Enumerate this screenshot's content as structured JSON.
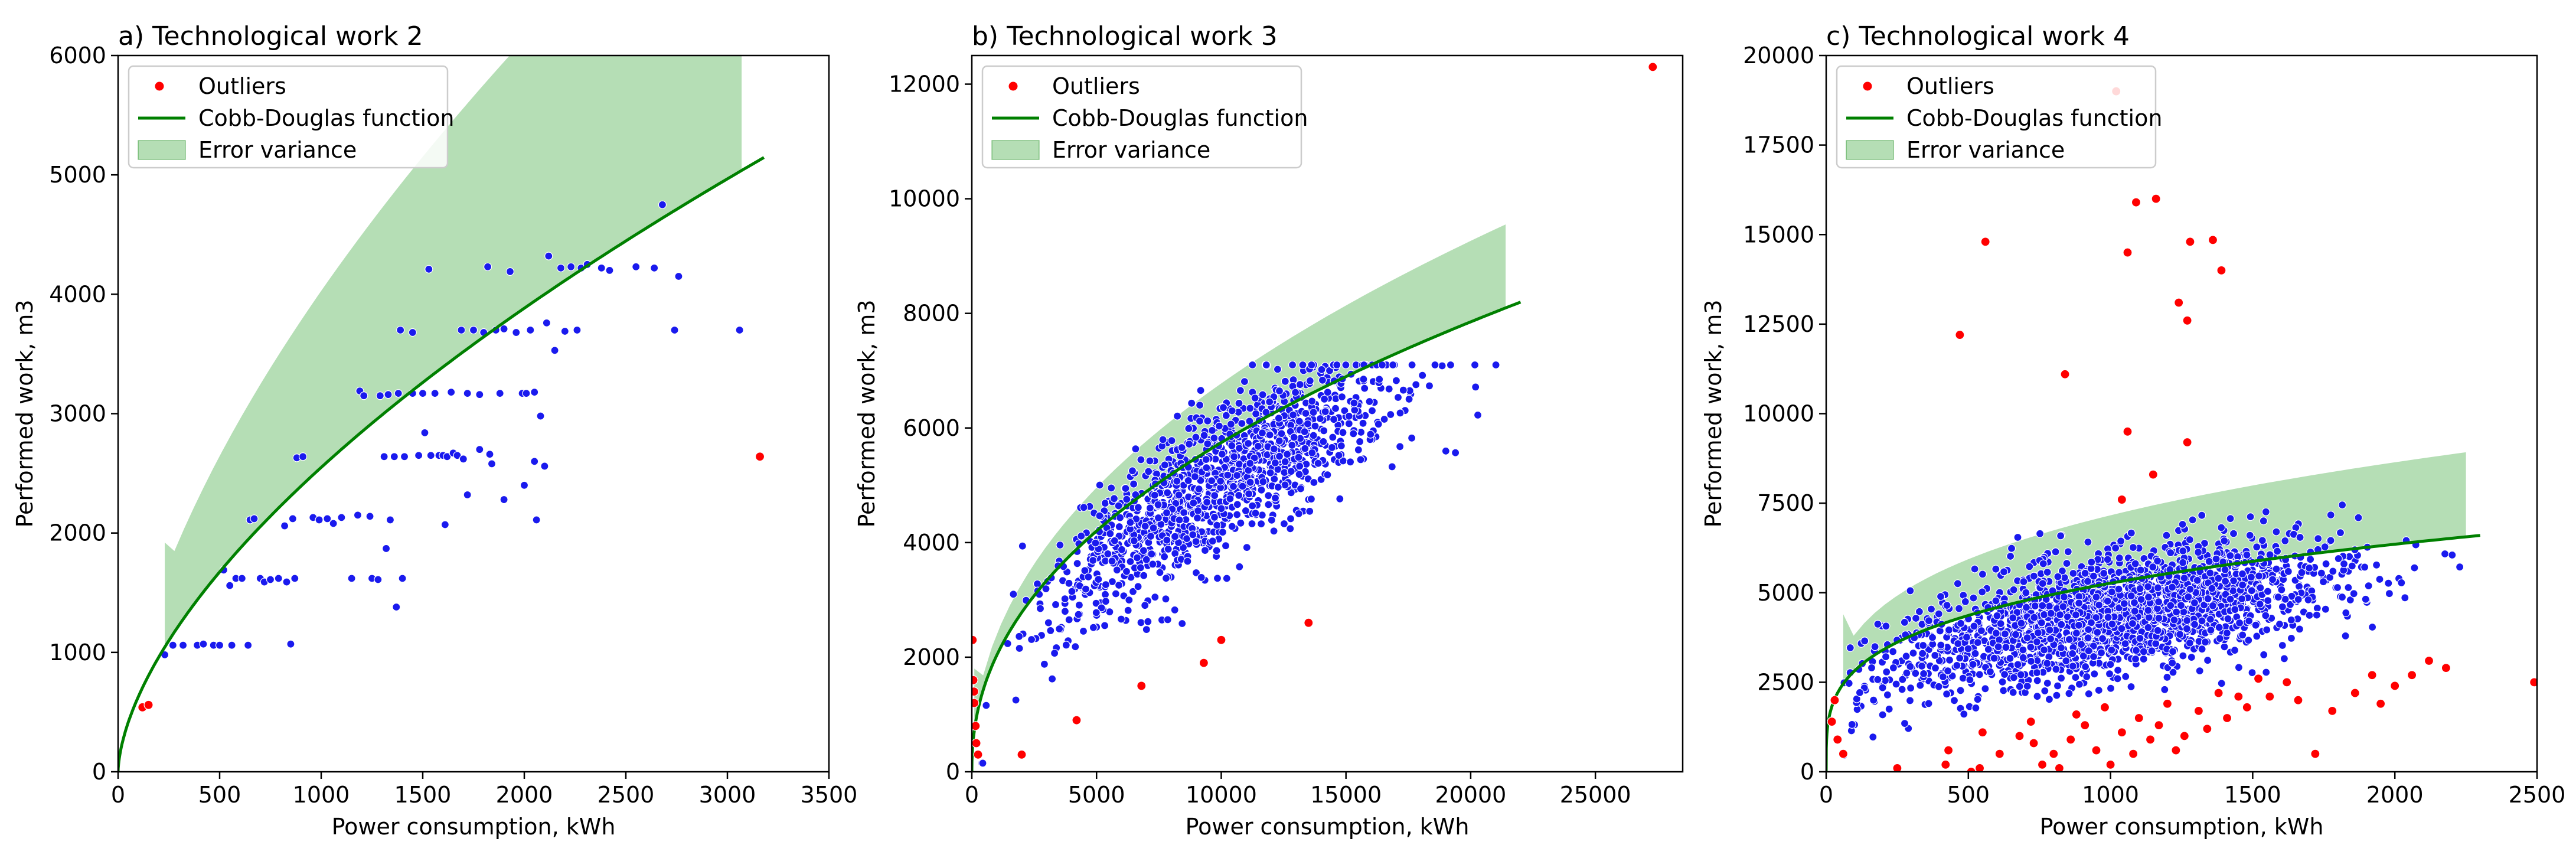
{
  "figure": {
    "colors": {
      "background": "#ffffff",
      "outliers": "#ff0000",
      "points": "#1a1aee",
      "point_edge": "#ffffff",
      "curve": "#008000",
      "band": "#a8d8a8",
      "band_opacity": 0.85,
      "legend_border": "#cccccc"
    },
    "legend_labels": {
      "outliers": "Outliers",
      "curve": "Cobb-Douglas function",
      "band": "Error variance"
    }
  },
  "chart_data": [
    {
      "type": "scatter",
      "title": "a) Technological work 2",
      "xlabel": "Power consumption, kWh",
      "ylabel": "Performed work, m3",
      "xlim": [
        0,
        3500
      ],
      "ylim": [
        0,
        6000
      ],
      "xticks": [
        "0",
        "500",
        "1000",
        "1500",
        "2000",
        "2500",
        "3000",
        "3500"
      ],
      "xtick_values": [
        0,
        500,
        1000,
        1500,
        2000,
        2500,
        3000,
        3500
      ],
      "yticks": [
        "0",
        "1000",
        "2000",
        "3000",
        "4000",
        "5000",
        "6000"
      ],
      "ytick_values": [
        0,
        1000,
        2000,
        3000,
        4000,
        5000,
        6000
      ],
      "grid": false,
      "legend": "upper left",
      "series": [
        {
          "name": "Cobb-Douglas function",
          "kind": "line",
          "model": "y = a * x^b",
          "a": 38.5,
          "b": 0.607,
          "x_range": [
            0,
            3180
          ]
        },
        {
          "name": "Error variance",
          "kind": "band",
          "x_range": [
            230,
            3070
          ],
          "lower": [
            [
              230,
              1200
            ],
            [
              3070,
              5050
            ]
          ],
          "upper_scale": 1.58,
          "upper_min": 1920
        },
        {
          "name": "Outliers",
          "kind": "scatter",
          "points": [
            [
              120,
              540
            ],
            [
              150,
              560
            ],
            [
              3160,
              2640
            ]
          ]
        },
        {
          "name": "",
          "kind": "scatter",
          "points": [
            [
              230,
              980
            ],
            [
              270,
              1060
            ],
            [
              320,
              1060
            ],
            [
              390,
              1060
            ],
            [
              420,
              1070
            ],
            [
              470,
              1060
            ],
            [
              500,
              1060
            ],
            [
              520,
              1690
            ],
            [
              550,
              1560
            ],
            [
              560,
              1060
            ],
            [
              580,
              1620
            ],
            [
              610,
              1620
            ],
            [
              640,
              1060
            ],
            [
              650,
              2110
            ],
            [
              670,
              2120
            ],
            [
              700,
              1620
            ],
            [
              720,
              1590
            ],
            [
              750,
              1610
            ],
            [
              790,
              1620
            ],
            [
              820,
              2060
            ],
            [
              830,
              1590
            ],
            [
              850,
              1070
            ],
            [
              860,
              2120
            ],
            [
              870,
              1620
            ],
            [
              880,
              2630
            ],
            [
              910,
              2640
            ],
            [
              960,
              2130
            ],
            [
              990,
              2110
            ],
            [
              1030,
              2120
            ],
            [
              1100,
              2130
            ],
            [
              1150,
              1620
            ],
            [
              1190,
              3190
            ],
            [
              1210,
              3150
            ],
            [
              1250,
              1620
            ],
            [
              1280,
              1610
            ],
            [
              1290,
              3150
            ],
            [
              1310,
              2640
            ],
            [
              1330,
              3160
            ],
            [
              1360,
              2640
            ],
            [
              1380,
              3170
            ],
            [
              1390,
              3700
            ],
            [
              1410,
              2640
            ],
            [
              1450,
              3170
            ],
            [
              1480,
              2650
            ],
            [
              1500,
              3170
            ],
            [
              1510,
              2840
            ],
            [
              1530,
              4210
            ],
            [
              1540,
              2650
            ],
            [
              1560,
              3170
            ],
            [
              1580,
              2650
            ],
            [
              1600,
              2650
            ],
            [
              1620,
              2640
            ],
            [
              1640,
              3180
            ],
            [
              1650,
              2670
            ],
            [
              1670,
              2650
            ],
            [
              1690,
              3700
            ],
            [
              1700,
              2620
            ],
            [
              1720,
              3170
            ],
            [
              1750,
              3700
            ],
            [
              1780,
              3160
            ],
            [
              1800,
              3680
            ],
            [
              1820,
              4230
            ],
            [
              1840,
              2580
            ],
            [
              1860,
              3700
            ],
            [
              1880,
              3170
            ],
            [
              1900,
              3710
            ],
            [
              1930,
              4190
            ],
            [
              1960,
              3680
            ],
            [
              1990,
              3170
            ],
            [
              2010,
              3170
            ],
            [
              2030,
              3700
            ],
            [
              2050,
              3180
            ],
            [
              2060,
              2110
            ],
            [
              2080,
              2980
            ],
            [
              2120,
              4320
            ],
            [
              2150,
              3530
            ],
            [
              2180,
              4220
            ],
            [
              2200,
              3690
            ],
            [
              2230,
              4230
            ],
            [
              2260,
              3700
            ],
            [
              2280,
              4220
            ],
            [
              2310,
              4250
            ],
            [
              2380,
              4220
            ],
            [
              2420,
              4200
            ],
            [
              2550,
              4230
            ],
            [
              2640,
              4220
            ],
            [
              2680,
              4750
            ],
            [
              2740,
              3700
            ],
            [
              2760,
              4150
            ],
            [
              3060,
              3700
            ],
            [
              1320,
              1870
            ],
            [
              1400,
              1620
            ],
            [
              1610,
              2070
            ],
            [
              1720,
              2320
            ],
            [
              1780,
              2700
            ],
            [
              1830,
              2660
            ],
            [
              1900,
              2280
            ],
            [
              2000,
              2400
            ],
            [
              2050,
              2600
            ],
            [
              2100,
              2560
            ],
            [
              1180,
              2150
            ],
            [
              1240,
              2140
            ],
            [
              1060,
              2080
            ],
            [
              1340,
              2110
            ],
            [
              1370,
              1380
            ],
            [
              1450,
              3680
            ],
            [
              2110,
              3760
            ]
          ]
        }
      ]
    },
    {
      "type": "scatter",
      "title": "b) Technological work 3",
      "xlabel": "Power consumption, kWh",
      "ylabel": "Performed work, m3",
      "xlim": [
        0,
        28500
      ],
      "ylim": [
        0,
        12500
      ],
      "xticks": [
        "0",
        "5000",
        "10000",
        "15000",
        "20000",
        "25000"
      ],
      "xtick_values": [
        0,
        5000,
        10000,
        15000,
        20000,
        25000
      ],
      "yticks": [
        "0",
        "2000",
        "4000",
        "6000",
        "8000",
        "10000",
        "12000"
      ],
      "ytick_values": [
        0,
        2000,
        4000,
        6000,
        8000,
        10000,
        12000
      ],
      "grid": false,
      "legend": "upper left",
      "series": [
        {
          "name": "Cobb-Douglas function",
          "kind": "line",
          "model": "y = a * x^b",
          "a": 90.2,
          "b": 0.451,
          "x_range": [
            0,
            22000
          ]
        },
        {
          "name": "Error variance",
          "kind": "band",
          "x_range": [
            100,
            21400
          ],
          "upper_scale": 1.18,
          "upper_min": 1800
        },
        {
          "name": "Outliers",
          "kind": "scatter",
          "points": [
            [
              30,
              2300
            ],
            [
              60,
              1600
            ],
            [
              90,
              1400
            ],
            [
              100,
              1200
            ],
            [
              150,
              800
            ],
            [
              180,
              500
            ],
            [
              250,
              300
            ],
            [
              2000,
              300
            ],
            [
              4200,
              900
            ],
            [
              6800,
              1500
            ],
            [
              9300,
              1900
            ],
            [
              10000,
              2300
            ],
            [
              13500,
              2600
            ],
            [
              27300,
              12300
            ]
          ]
        },
        {
          "name": "",
          "kind": "generated_cloud",
          "count": 1300,
          "seed": 7,
          "x_range": [
            300,
            21500
          ],
          "x_mode": 10000,
          "x_spread": 3300,
          "model": "y = 88 * x^0.45 - 420",
          "noise_sd": 650,
          "y_clip": [
            150,
            7100
          ]
        }
      ]
    },
    {
      "type": "scatter",
      "title": "c) Technological work 4",
      "xlabel": "Power consumption, kWh",
      "ylabel": "Performed work, m3",
      "xlim": [
        0,
        2500
      ],
      "ylim": [
        0,
        20000
      ],
      "xticks": [
        "0",
        "500",
        "1000",
        "1500",
        "2000",
        "2500"
      ],
      "xtick_values": [
        0,
        500,
        1000,
        1500,
        2000,
        2500
      ],
      "yticks": [
        "0",
        "2500",
        "5000",
        "7500",
        "10000",
        "12500",
        "15000",
        "17500",
        "20000"
      ],
      "ytick_values": [
        0,
        2500,
        5000,
        7500,
        10000,
        12500,
        15000,
        17500,
        20000
      ],
      "grid": false,
      "legend": "upper left",
      "series": [
        {
          "name": "Cobb-Douglas function",
          "kind": "line",
          "model": "y = a * x^b",
          "a": 810,
          "b": 0.271,
          "x_range": [
            0,
            2300
          ]
        },
        {
          "name": "Error variance",
          "kind": "band",
          "x_range": [
            60,
            2250
          ],
          "upper_scale": 1.36,
          "upper_min": 4400
        },
        {
          "name": "Outliers",
          "kind": "scatter",
          "points": [
            [
              1020,
              19000
            ],
            [
              1160,
              16000
            ],
            [
              1090,
              15900
            ],
            [
              560,
              14800
            ],
            [
              1280,
              14800
            ],
            [
              1360,
              14850
            ],
            [
              1060,
              14500
            ],
            [
              1390,
              14000
            ],
            [
              1240,
              13100
            ],
            [
              1270,
              12600
            ],
            [
              470,
              12200
            ],
            [
              840,
              11100
            ],
            [
              1060,
              9500
            ],
            [
              1270,
              9200
            ],
            [
              1040,
              7600
            ],
            [
              1150,
              8300
            ],
            [
              30,
              2000
            ],
            [
              20,
              1400
            ],
            [
              40,
              900
            ],
            [
              60,
              500
            ],
            [
              250,
              100
            ],
            [
              420,
              200
            ],
            [
              430,
              600
            ],
            [
              510,
              0
            ],
            [
              540,
              100
            ],
            [
              550,
              1100
            ],
            [
              610,
              500
            ],
            [
              680,
              1000
            ],
            [
              720,
              1400
            ],
            [
              730,
              800
            ],
            [
              760,
              200
            ],
            [
              800,
              500
            ],
            [
              820,
              100
            ],
            [
              860,
              900
            ],
            [
              880,
              1600
            ],
            [
              910,
              1300
            ],
            [
              950,
              600
            ],
            [
              980,
              1800
            ],
            [
              1000,
              200
            ],
            [
              1040,
              1100
            ],
            [
              1080,
              500
            ],
            [
              1100,
              1500
            ],
            [
              1140,
              900
            ],
            [
              1170,
              1300
            ],
            [
              1200,
              1900
            ],
            [
              1230,
              600
            ],
            [
              1260,
              1000
            ],
            [
              1310,
              1700
            ],
            [
              1340,
              1200
            ],
            [
              1380,
              2200
            ],
            [
              1410,
              1500
            ],
            [
              1450,
              2100
            ],
            [
              1480,
              1800
            ],
            [
              1520,
              2600
            ],
            [
              1560,
              2100
            ],
            [
              1620,
              2500
            ],
            [
              1660,
              2000
            ],
            [
              1720,
              500
            ],
            [
              1780,
              1700
            ],
            [
              1860,
              2200
            ],
            [
              1920,
              2700
            ],
            [
              1950,
              1900
            ],
            [
              2000,
              2400
            ],
            [
              2060,
              2700
            ],
            [
              2120,
              3100
            ],
            [
              2180,
              2900
            ],
            [
              2490,
              2500
            ]
          ]
        },
        {
          "name": "",
          "kind": "generated_cloud",
          "count": 2200,
          "seed": 11,
          "x_range": [
            60,
            2230
          ],
          "x_mode": 1000,
          "x_spread": 380,
          "model": "y = 540 * x^0.305",
          "noise_sd": 800,
          "y_clip": [
            400,
            7500
          ]
        }
      ]
    }
  ]
}
